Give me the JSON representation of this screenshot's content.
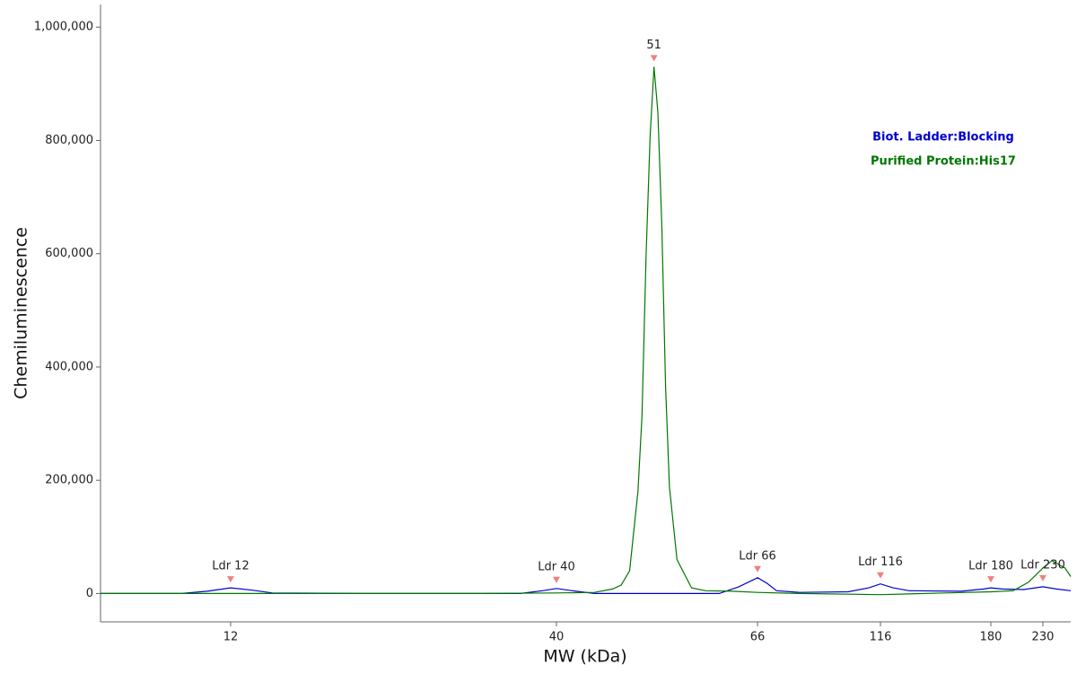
{
  "chart_data": {
    "type": "line",
    "xlabel": "MW (kDa)",
    "ylabel": "Chemiluminescence",
    "xlim": [
      7.4,
      262
    ],
    "xticks": [
      12,
      40,
      66,
      116,
      180,
      230
    ],
    "ylim": [
      -50000,
      1040000
    ],
    "yticks": [
      0,
      {
        "value": 200000,
        "label": "200,000"
      },
      {
        "value": 400000,
        "label": "400,000"
      },
      {
        "value": 600000,
        "label": "600,000"
      },
      {
        "value": 800000,
        "label": "800,000"
      },
      {
        "value": 1000000,
        "label": "1,000,000"
      }
    ],
    "grid": false,
    "legend": "upper right",
    "series": [
      {
        "name": "Biot. Ladder:Blocking",
        "color": "#0000cc",
        "x": [
          7.4,
          10,
          11,
          12,
          13,
          14,
          20,
          35,
          38,
          40,
          42,
          44,
          60,
          63,
          66,
          69,
          72,
          80,
          100,
          110,
          116,
          122,
          130,
          160,
          175,
          180,
          190,
          210,
          222,
          230,
          245,
          262
        ],
        "values": [
          0,
          0,
          4000,
          10000,
          6000,
          1000,
          0,
          0,
          5000,
          9000,
          4000,
          0,
          0,
          12000,
          28000,
          18000,
          5000,
          2000,
          3000,
          10000,
          17000,
          10000,
          5000,
          4000,
          8000,
          10000,
          8000,
          7000,
          10000,
          12000,
          8000,
          5000
        ]
      },
      {
        "name": "Purified Protein:His17",
        "color": "#007700",
        "x": [
          7.4,
          12,
          30,
          40,
          44,
          46,
          47,
          48,
          49,
          49.5,
          50,
          50.5,
          51,
          51.5,
          52,
          52.5,
          53,
          54,
          56,
          58,
          62,
          66,
          80,
          116,
          150,
          180,
          200,
          215,
          230,
          240,
          255,
          262
        ],
        "values": [
          0,
          0,
          0,
          1000,
          2000,
          8000,
          15000,
          40000,
          180000,
          313000,
          593000,
          805000,
          930000,
          850000,
          650000,
          365000,
          188000,
          60000,
          10000,
          5000,
          4000,
          2000,
          0,
          -2000,
          1000,
          3000,
          5000,
          20000,
          45000,
          58000,
          45000,
          30000
        ]
      }
    ],
    "annotations": [
      {
        "label": "Ldr 12",
        "x": 12,
        "y": 10000
      },
      {
        "label": "Ldr 40",
        "x": 40,
        "y": 9000
      },
      {
        "label": "51",
        "x": 51,
        "y": 930000
      },
      {
        "label": "Ldr 66",
        "x": 66,
        "y": 28000
      },
      {
        "label": "Ldr 116",
        "x": 116,
        "y": 17000
      },
      {
        "label": "Ldr 180",
        "x": 180,
        "y": 10000
      },
      {
        "label": "Ldr 230",
        "x": 230,
        "y": 12000
      }
    ]
  }
}
